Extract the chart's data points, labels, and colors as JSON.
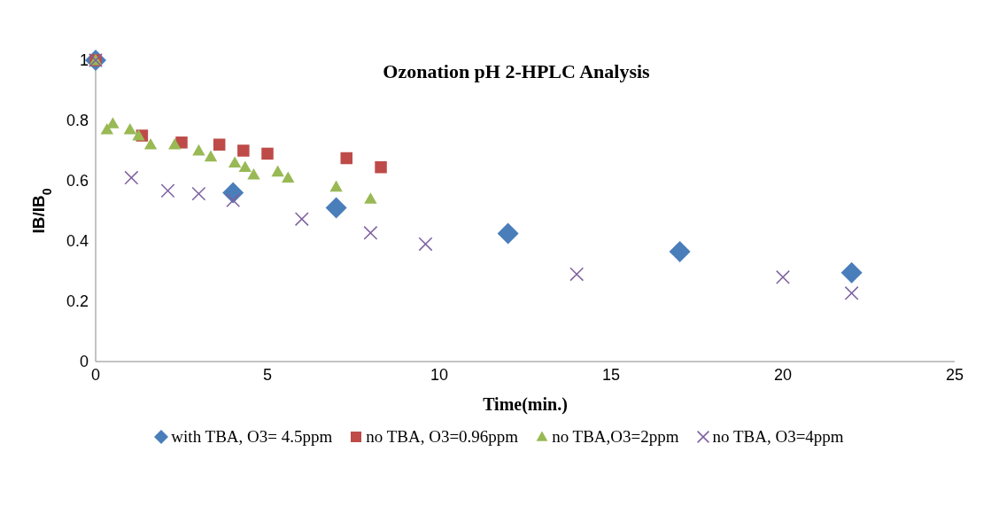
{
  "chart_data": {
    "type": "scatter",
    "title": "Ozonation pH 2-HPLC Analysis",
    "xlabel": "Time(min.)",
    "ylabel": "IB/IB$_{0}$",
    "xlim": [
      0,
      25
    ],
    "xticks": [
      0,
      5,
      10,
      15,
      20,
      25
    ],
    "ylim": [
      0,
      1
    ],
    "yticks": [
      0,
      0.2,
      0.4,
      0.6,
      0.8,
      1
    ],
    "grid": false,
    "legend": "bottom",
    "series": [
      {
        "name": "with TBA, O3= 4.5ppm",
        "color": "#4a7ebb",
        "marker": "diamond",
        "x": [
          0,
          4,
          7,
          12,
          17,
          22
        ],
        "values": [
          1,
          0.56,
          0.51,
          0.425,
          0.365,
          0.295
        ]
      },
      {
        "name": "no TBA, O3=0.96ppm",
        "color": "#be4b48",
        "marker": "square",
        "x": [
          0,
          1.35,
          2.5,
          3.6,
          4.3,
          5.0,
          7.3,
          8.3
        ],
        "values": [
          1,
          0.75,
          0.727,
          0.72,
          0.7,
          0.69,
          0.675,
          0.645
        ]
      },
      {
        "name": "no TBA,O3=2ppm",
        "color": "#98b954",
        "marker": "triangle",
        "x": [
          0,
          0.33,
          0.5,
          1.0,
          1.25,
          1.6,
          2.3,
          3.0,
          3.35,
          4.05,
          4.35,
          4.6,
          5.3,
          5.6,
          7.0,
          8.0
        ],
        "values": [
          1,
          0.77,
          0.79,
          0.77,
          0.75,
          0.72,
          0.72,
          0.7,
          0.68,
          0.66,
          0.645,
          0.62,
          0.63,
          0.61,
          0.58,
          0.54
        ]
      },
      {
        "name": "no TBA, O3=4ppm",
        "color": "#7d60a0",
        "marker": "cross",
        "x": [
          0,
          1.04,
          2.1,
          3.0,
          4.0,
          6.0,
          8.0,
          9.6,
          14,
          20,
          22
        ],
        "values": [
          1,
          0.61,
          0.567,
          0.557,
          0.535,
          0.473,
          0.427,
          0.39,
          0.29,
          0.28,
          0.227
        ]
      }
    ]
  }
}
